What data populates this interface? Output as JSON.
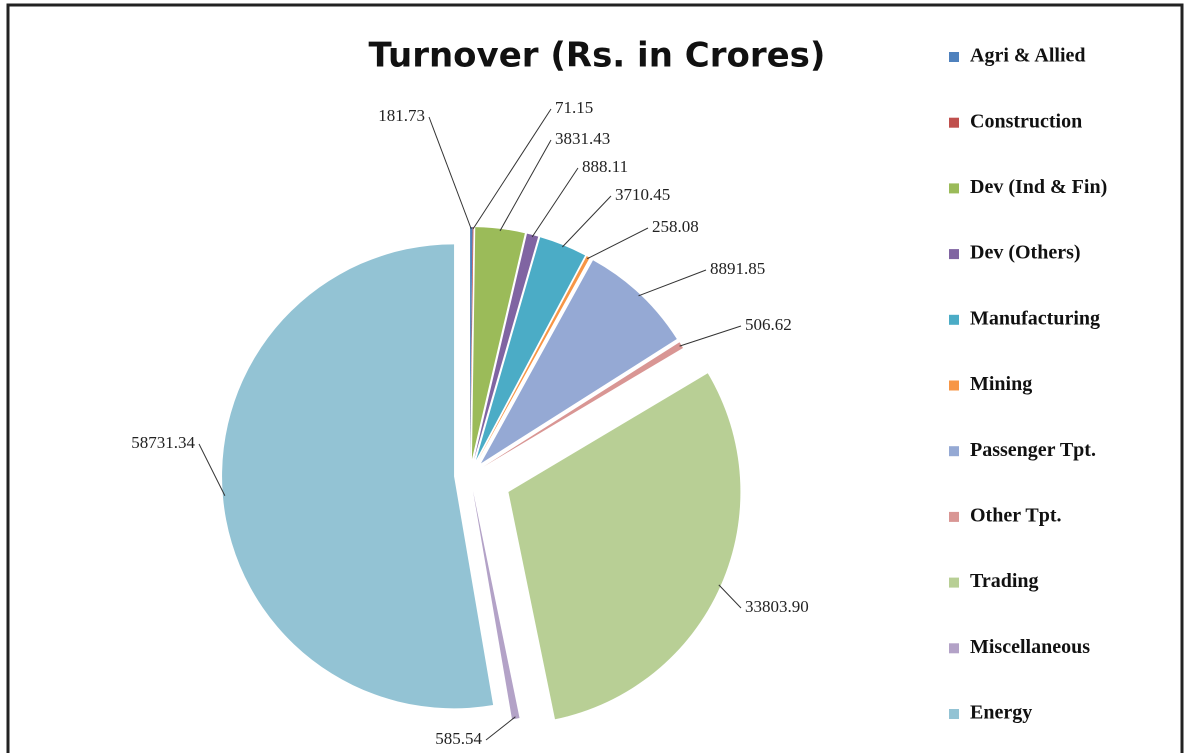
{
  "chart_data": {
    "type": "pie",
    "title": "Turnover (Rs. in Crores)",
    "categories": [
      "Agri & Allied",
      "Construction",
      "Dev (Ind & Fin)",
      "Dev (Others)",
      "Manufacturing",
      "Mining",
      "Passenger Tpt.",
      "Other Tpt.",
      "Trading",
      "Miscellaneous",
      "Energy"
    ],
    "values": [
      181.73,
      71.15,
      3831.43,
      888.11,
      3710.45,
      258.08,
      8891.85,
      506.62,
      33803.9,
      585.54,
      58731.34
    ],
    "value_labels": [
      "181.73",
      "71.15",
      "3831.43",
      "888.11",
      "3710.45",
      "258.08",
      "8891.85",
      "506.62",
      "33803.90",
      "585.54",
      "58731.34"
    ],
    "colors": [
      "#4f81bd",
      "#c0504d",
      "#9bbb59",
      "#8064a2",
      "#4bacc6",
      "#f79646",
      "#95a9d4",
      "#d99694",
      "#b8cf95",
      "#b3a2c7",
      "#93c3d4"
    ],
    "legend": "right"
  }
}
